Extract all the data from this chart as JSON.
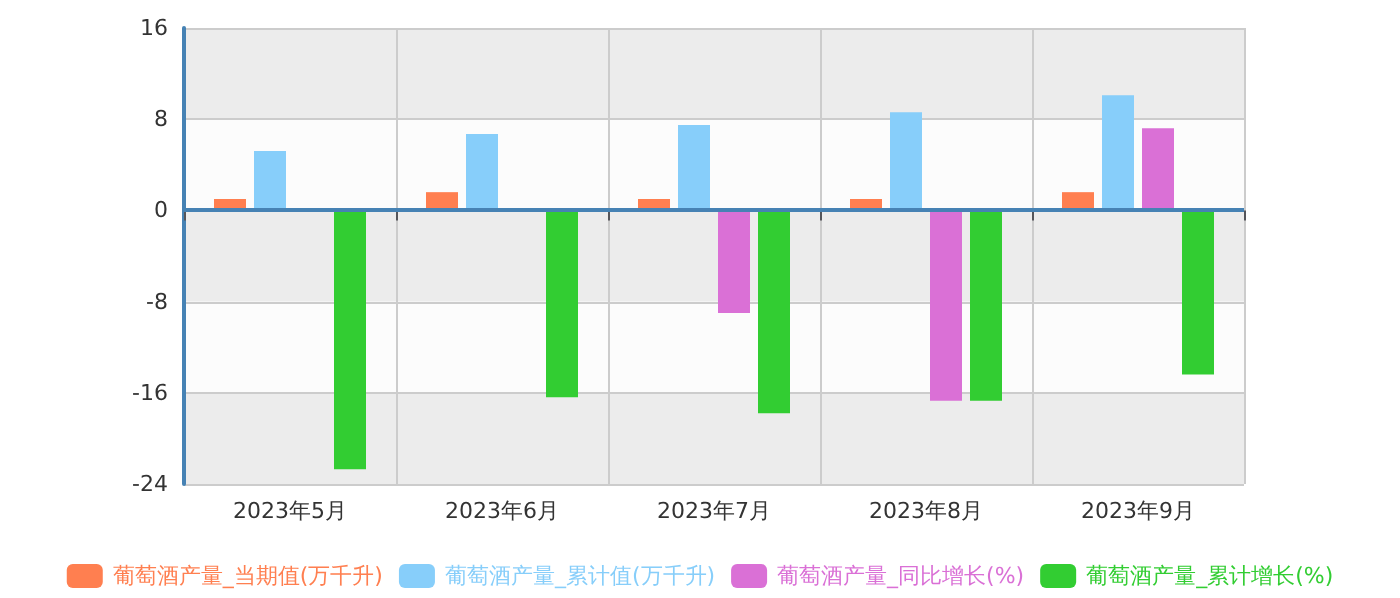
{
  "chart_data": {
    "type": "bar",
    "categories": [
      "2023年5月",
      "2023年6月",
      "2023年7月",
      "2023年8月",
      "2023年9月"
    ],
    "series": [
      {
        "name": "葡萄酒产量_当期值(万千升)",
        "color": "#ff7f50",
        "values": [
          1.0,
          1.6,
          1.0,
          1.0,
          1.6
        ]
      },
      {
        "name": "葡萄酒产量_累计值(万千升)",
        "color": "#87cefa",
        "values": [
          5.2,
          6.7,
          7.5,
          8.6,
          10.1
        ]
      },
      {
        "name": "葡萄酒产量_同比增长(%)",
        "color": "#da70d6",
        "values": [
          null,
          null,
          -9.0,
          -16.7,
          7.2
        ]
      },
      {
        "name": "葡萄酒产量_累计增长(%)",
        "color": "#32cd32",
        "values": [
          -22.7,
          -16.4,
          -17.8,
          -16.7,
          -14.4
        ]
      }
    ],
    "ref_lines": [
      {
        "axis": "y",
        "value": 0,
        "color": "#4682b4"
      }
    ],
    "ylim": [
      -24,
      16
    ],
    "yticks": [
      -24,
      -16,
      -8,
      0,
      8,
      16
    ],
    "grid": true,
    "legend": "bottom"
  }
}
